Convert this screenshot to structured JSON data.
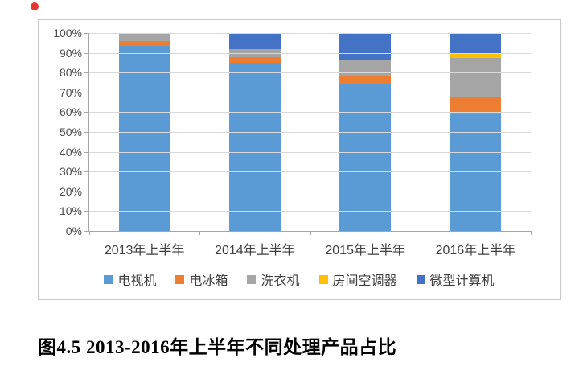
{
  "page": {
    "caption": "图4.5 2013-2016年上半年不同处理产品占比"
  },
  "chart_data": {
    "type": "bar",
    "stacked": true,
    "units": "percent",
    "title": "",
    "xlabel": "",
    "ylabel": "",
    "categories": [
      "2013年上半年",
      "2014年上半年",
      "2015年上半年",
      "2016年上半年"
    ],
    "series": [
      {
        "name": "电视机",
        "color": "#5B9BD5",
        "values": [
          93.5,
          85.0,
          74.0,
          59.0
        ]
      },
      {
        "name": "电冰箱",
        "color": "#ED7D31",
        "values": [
          2.5,
          3.0,
          4.0,
          9.0
        ]
      },
      {
        "name": "洗衣机",
        "color": "#A5A5A5",
        "values": [
          3.5,
          4.0,
          8.5,
          19.5
        ]
      },
      {
        "name": "房间空调器",
        "color": "#FFC000",
        "values": [
          0.5,
          0.0,
          0.0,
          2.0
        ]
      },
      {
        "name": "微型计算机",
        "color": "#4472C4",
        "values": [
          0.0,
          8.0,
          13.5,
          10.5
        ]
      }
    ],
    "y_ticks": [
      "100%",
      "90%",
      "80%",
      "70%",
      "60%",
      "50%",
      "40%",
      "30%",
      "20%",
      "10%",
      "0%"
    ],
    "ylim": [
      0,
      100
    ],
    "grid": true,
    "legend_position": "bottom"
  },
  "colors": {
    "grid": "#D9D9D9",
    "axis": "#A6A6A6",
    "frame_border": "#C8C8C8",
    "tick_label": "#4D4D4D",
    "red_dot": "#E8362D"
  }
}
